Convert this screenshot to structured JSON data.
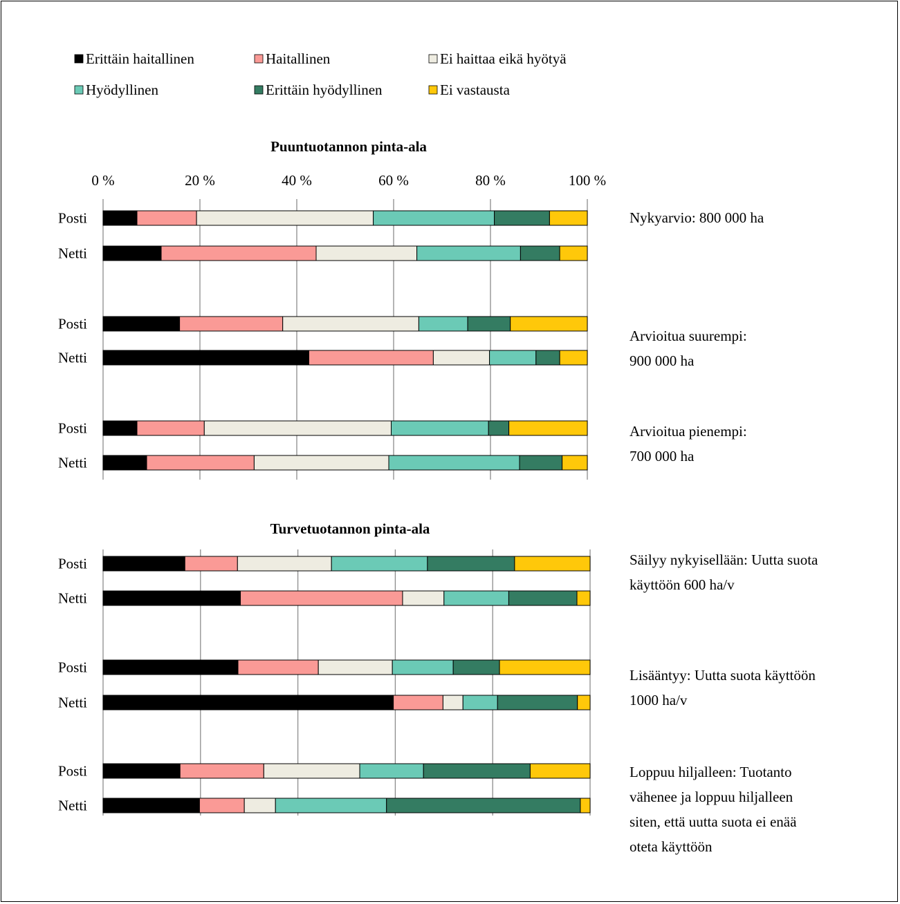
{
  "legend": [
    {
      "label": "Erittäin haitallinen",
      "color": "#000000"
    },
    {
      "label": "Haitallinen",
      "color": "#FA9A96"
    },
    {
      "label": "Ei haittaa eikä hyötyä",
      "color": "#EEECE1"
    },
    {
      "label": "Hyödyllinen",
      "color": "#6BCAB6"
    },
    {
      "label": "Erittäin hyödyllinen",
      "color": "#347C62"
    },
    {
      "label": "Ei vastausta",
      "color": "#FFC80A"
    }
  ],
  "chart_data": [
    {
      "type": "bar",
      "orientation": "horizontal",
      "stacked": "percent",
      "title": "Puuntuotannon pinta-ala",
      "xlim": [
        0,
        100
      ],
      "x_ticks": [
        "0 %",
        "20 %",
        "40 %",
        "60 %",
        "80 %",
        "100 %"
      ],
      "grid": true,
      "legend_position": "top",
      "series_names": [
        "Erittäin haitallinen",
        "Haitallinen",
        "Ei haittaa eikä hyötyä",
        "Hyödyllinen",
        "Erittäin hyödyllinen",
        "Ei vastausta"
      ],
      "groups": [
        {
          "annotation": [
            "Nykyarvio: 800 000 ha"
          ],
          "bars": [
            {
              "label": "Posti",
              "values": [
                7,
                12.3,
                36.5,
                25,
                11.4,
                7.8
              ]
            },
            {
              "label": "Netti",
              "values": [
                12,
                32,
                20.8,
                21.4,
                8.1,
                5.7
              ]
            }
          ]
        },
        {
          "annotation": [
            "Arvioitua suurempi:",
            "900 000 ha"
          ],
          "bars": [
            {
              "label": "Posti",
              "values": [
                15.8,
                21.3,
                28.1,
                10.1,
                8.8,
                15.9
              ]
            },
            {
              "label": "Netti",
              "values": [
                42.5,
                25.7,
                11.6,
                9.6,
                4.9,
                5.7
              ]
            }
          ]
        },
        {
          "annotation": [
            "Arvioitua pienempi:",
            "700 000 ha"
          ],
          "bars": [
            {
              "label": "Posti",
              "values": [
                7,
                13.9,
                38.6,
                20.1,
                4.2,
                16.2
              ]
            },
            {
              "label": "Netti",
              "values": [
                9,
                22.2,
                27.8,
                27,
                8.8,
                5.2
              ]
            }
          ]
        }
      ]
    },
    {
      "type": "bar",
      "orientation": "horizontal",
      "stacked": "percent",
      "title": "Turvetuotannon pinta-ala",
      "xlim": [
        0,
        100
      ],
      "grid": true,
      "series_names": [
        "Erittäin haitallinen",
        "Haitallinen",
        "Ei haittaa eikä hyötyä",
        "Hyödyllinen",
        "Erittäin hyödyllinen",
        "Ei vastausta"
      ],
      "groups": [
        {
          "annotation": [
            "Säilyy nykyisellään: Uutta suota",
            "käyttöön 600 ha/v"
          ],
          "bars": [
            {
              "label": "Posti",
              "values": [
                16.8,
                10.8,
                19.3,
                19.7,
                17.9,
                15.5
              ]
            },
            {
              "label": "Netti",
              "values": [
                28.2,
                33.3,
                8.5,
                13.3,
                14,
                2.7
              ]
            }
          ]
        },
        {
          "annotation": [
            "Lisääntyy: Uutta suota käyttöön",
            "1000 ha/v"
          ],
          "bars": [
            {
              "label": "Posti",
              "values": [
                27.7,
                16.5,
                15.2,
                12.5,
                9.5,
                18.6
              ]
            },
            {
              "label": "Netti",
              "values": [
                59.6,
                10.2,
                4.1,
                7.1,
                16.4,
                2.6
              ]
            }
          ]
        },
        {
          "annotation": [
            "Loppuu hiljalleen: Tuotanto",
            "vähenee ja loppuu hiljalleen",
            "siten, että uutta suota ei enää",
            "oteta käyttöön"
          ],
          "bars": [
            {
              "label": "Posti",
              "values": [
                15.8,
                17.2,
                19.7,
                13.1,
                21.9,
                12.3
              ]
            },
            {
              "label": "Netti",
              "values": [
                19.8,
                9.2,
                6.4,
                22.8,
                39.8,
                2
              ]
            }
          ]
        }
      ]
    }
  ]
}
